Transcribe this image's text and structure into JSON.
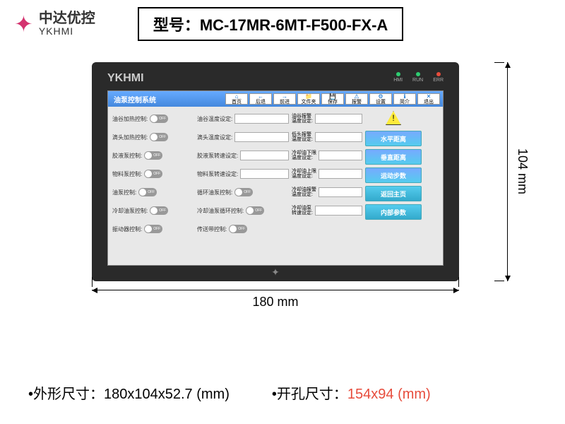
{
  "header": {
    "logo_cn": "中达优控",
    "logo_en": "YKHMI",
    "model_label": "型号：",
    "model_value": "MC-17MR-6MT-F500-FX-A"
  },
  "device": {
    "brand": "YKHMI",
    "leds": [
      {
        "label": "HMI",
        "color": "#2ecc71"
      },
      {
        "label": "RUN",
        "color": "#2ecc71"
      },
      {
        "label": "ERR",
        "color": "#e74c3c"
      }
    ],
    "titlebar": {
      "title": "油泵控制系统",
      "buttons": [
        "首页",
        "后退",
        "前进",
        "文件夹",
        "保存",
        "报警",
        "设置",
        "简介",
        "退出"
      ],
      "icons": [
        "⌂",
        "←",
        "→",
        "📁",
        "💾",
        "⚠",
        "⚙",
        "ℹ",
        "✕"
      ]
    },
    "col1": [
      {
        "label": "油谷加热控制:",
        "state": "off"
      },
      {
        "label": "滴头加热控制:",
        "state": "off"
      },
      {
        "label": "胶液泵控制:",
        "state": "off"
      },
      {
        "label": "物料泵控制:",
        "state": "off"
      },
      {
        "label": "油泵控制:",
        "state": "off"
      },
      {
        "label": "冷却油泵控制:",
        "state": "off"
      },
      {
        "label": "振动器控制:",
        "state": "off"
      }
    ],
    "col2": [
      {
        "label": "油谷温度设定:"
      },
      {
        "label": "滴头温度设定:"
      },
      {
        "label": "胶液泵转速设定:"
      },
      {
        "label": "物料泵转速设定:"
      },
      {
        "label": "循环油泵控制:",
        "toggle": "off"
      },
      {
        "label": "冷却油泵循环控制:",
        "toggle": "off"
      },
      {
        "label": "传送带控制:",
        "toggle": "off"
      }
    ],
    "col3": [
      {
        "l1": "油谷报警",
        "l2": "温度设定:"
      },
      {
        "l1": "低头报警",
        "l2": "温度设定:"
      },
      {
        "l1": "冷却油下限",
        "l2": "温度设定:"
      },
      {
        "l1": "冷却油上限",
        "l2": "温度设定:"
      },
      {
        "l1": "冷却油报警",
        "l2": "温度设定:"
      },
      {
        "l1": "冷却油泵",
        "l2": "转速设定:"
      }
    ],
    "action_buttons": [
      "水平距离",
      "垂直距离",
      "运动步数",
      "返回主页",
      "内部参数"
    ]
  },
  "dimensions": {
    "width": "180 mm",
    "height": "104 mm"
  },
  "specs": {
    "outline_label": "•外形尺寸：",
    "outline_value": "180x104x52.7 (mm)",
    "cutout_label": "•开孔尺寸：",
    "cutout_value": "154x94 (mm)"
  },
  "colors": {
    "accent": "#d4336f",
    "spec_highlight": "#e74c3c"
  }
}
